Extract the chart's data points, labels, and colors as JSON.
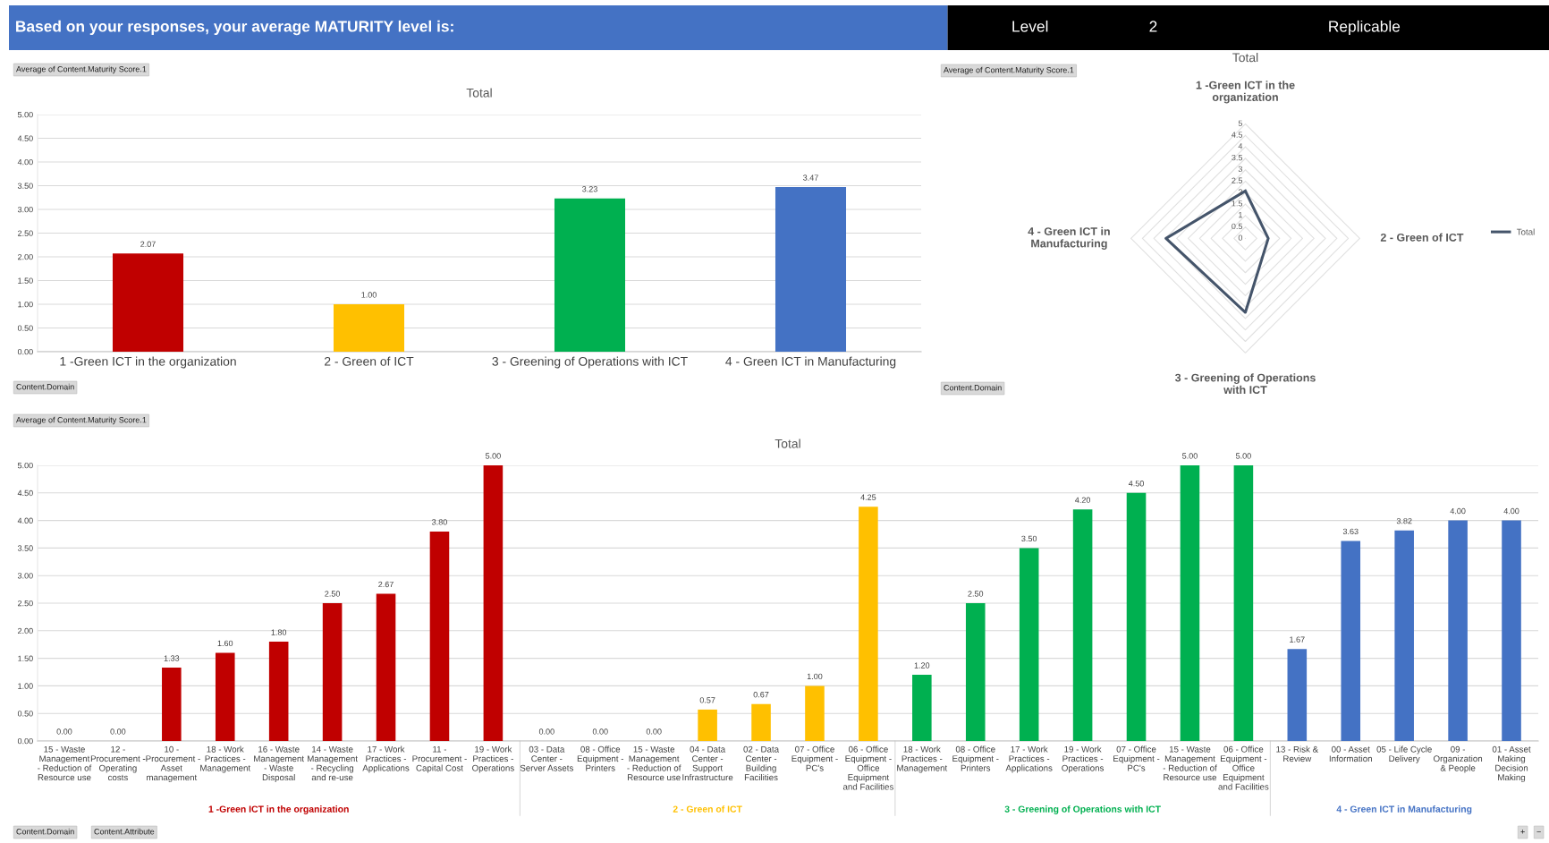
{
  "chart_data": [
    {
      "type": "other",
      "title": "Based on your responses, your average MATURITY level is:",
      "annotations": [
        "Level",
        "2",
        "Replicable"
      ],
      "colors": [
        "#4472c4",
        "#000000"
      ]
    },
    {
      "type": "bar",
      "title": "Total",
      "categories": [
        "1 -Green ICT in the organization",
        "2 - Green of ICT",
        "3 - Greening of Operations with ICT",
        "4 - Green ICT in Manufacturing"
      ],
      "values": [
        2.07,
        1.0,
        3.23,
        3.47
      ],
      "value_labels": [
        "2.07",
        "1.00",
        "3.23",
        "3.47"
      ],
      "colors": [
        "#c00000",
        "#ffc000",
        "#00b050",
        "#4472c4"
      ],
      "ylim": [
        0,
        5
      ],
      "yticks": [
        {
          "value": 0,
          "label": "0.00"
        },
        {
          "value": 0.5,
          "label": "0.50"
        },
        {
          "value": 1,
          "label": "1.00"
        },
        {
          "value": 1.5,
          "label": "1.50"
        },
        {
          "value": 2,
          "label": "2.00"
        },
        {
          "value": 2.5,
          "label": "2.50"
        },
        {
          "value": 3,
          "label": "3.00"
        },
        {
          "value": 3.5,
          "label": "3.50"
        },
        {
          "value": 4,
          "label": "4.00"
        },
        {
          "value": 4.5,
          "label": "4.50"
        },
        {
          "value": 5,
          "label": "5.00"
        }
      ],
      "grid": "y",
      "annotations": [
        "Average of Content.Maturity Score.1",
        "Content.Domain"
      ]
    },
    {
      "type": "radar",
      "title": "Total",
      "categories": [
        "1 -Green ICT in the\norganization",
        "2 - Green of ICT",
        "3 - Greening of Operations\nwith ICT",
        "4 - Green ICT in\nManufacturing"
      ],
      "series": [
        {
          "name": "Total",
          "color": "#44546a",
          "values": [
            2.07,
            1.0,
            3.23,
            3.47
          ]
        }
      ],
      "ylim": [
        0,
        5
      ],
      "yticks": [
        0,
        0.5,
        1,
        1.5,
        2,
        2.5,
        3,
        3.5,
        4,
        4.5,
        5
      ],
      "grid": true,
      "legend": "right",
      "marker": "none",
      "annotations": [
        "Average of Content.Maturity Score.1",
        "Content.Domain"
      ]
    },
    {
      "type": "bar",
      "title": "Total",
      "categories": [
        "15 - Waste\nManagement\n- Reduction of\nResource use",
        "12 -\nProcurement -\nOperating\ncosts",
        "10 -\n-Procurement -\nAsset\nmanagement",
        "18 - Work\nPractices -\nManagement",
        "16 - Waste\nManagement\n- Waste\nDisposal",
        "14 - Waste\nManagement\n- Recycling\nand re-use",
        "17 - Work\nPractices -\nApplications",
        "11 -\nProcurement -\nCapital Cost",
        "19 - Work\nPractices -\nOperations",
        "03 - Data\nCenter -\nServer Assets",
        "08 - Office\nEquipment -\nPrinters",
        "15 - Waste\nManagement\n- Reduction of\nResource use",
        "04 - Data\nCenter -\nSupport\nInfrastructure",
        "02 - Data\nCenter -\nBuilding\nFacilities",
        "07 - Office\nEquipment -\nPC's",
        "06 - Office\nEquipment -\nOffice\nEquipment\nand Facilities",
        "18 - Work\nPractices -\nManagement",
        "08 - Office\nEquipment -\nPrinters",
        "17 - Work\nPractices -\nApplications",
        "19 - Work\nPractices -\nOperations",
        "07 - Office\nEquipment -\nPC's",
        "15 - Waste\nManagement\n- Reduction of\nResource use",
        "06 - Office\nEquipment -\nOffice\nEquipment\nand Facilities",
        "13 - Risk &\nReview",
        "00 - Asset\nInformation",
        "05 - Life Cycle\nDelivery",
        "09 -\nOrganization\n& People",
        "01 - Asset\nMaking\nDecision\nMaking"
      ],
      "series": [
        {
          "name": "1 -Green ICT in the organization",
          "color": "#c00000",
          "values": [
            0.0,
            0.0,
            1.33,
            1.6,
            1.8,
            2.5,
            2.67,
            3.8,
            5.0,
            null,
            null,
            null,
            null,
            null,
            null,
            null,
            null,
            null,
            null,
            null,
            null,
            null,
            null,
            null,
            null,
            null,
            null,
            null
          ],
          "value_labels": [
            "0.00",
            "0.00",
            "1.33",
            "1.60",
            "1.80",
            "2.50",
            "2.67",
            "3.80",
            "5.00",
            null,
            null,
            null,
            null,
            null,
            null,
            null,
            null,
            null,
            null,
            null,
            null,
            null,
            null,
            null,
            null,
            null,
            null,
            null
          ]
        },
        {
          "name": "2 - Green of ICT",
          "color": "#ffc000",
          "values": [
            null,
            null,
            null,
            null,
            null,
            null,
            null,
            null,
            null,
            0.0,
            0.0,
            0.0,
            0.57,
            0.67,
            1.0,
            4.25,
            null,
            null,
            null,
            null,
            null,
            null,
            null,
            null,
            null,
            null,
            null,
            null
          ],
          "value_labels": [
            null,
            null,
            null,
            null,
            null,
            null,
            null,
            null,
            null,
            "0.00",
            "0.00",
            "0.00",
            "0.57",
            "0.67",
            "1.00",
            "4.25",
            null,
            null,
            null,
            null,
            null,
            null,
            null,
            null,
            null,
            null,
            null,
            null
          ]
        },
        {
          "name": "3 - Greening of Operations with ICT",
          "color": "#00b050",
          "values": [
            null,
            null,
            null,
            null,
            null,
            null,
            null,
            null,
            null,
            null,
            null,
            null,
            null,
            null,
            null,
            null,
            1.2,
            2.5,
            3.5,
            4.2,
            4.5,
            5.0,
            5.0,
            null,
            null,
            null,
            null,
            null
          ],
          "value_labels": [
            null,
            null,
            null,
            null,
            null,
            null,
            null,
            null,
            null,
            null,
            null,
            null,
            null,
            null,
            null,
            null,
            "1.20",
            "2.50",
            "3.50",
            "4.20",
            "4.50",
            "5.00",
            "5.00",
            null,
            null,
            null,
            null,
            null
          ]
        },
        {
          "name": "4 - Green ICT in Manufacturing",
          "color": "#4472c4",
          "values": [
            null,
            null,
            null,
            null,
            null,
            null,
            null,
            null,
            null,
            null,
            null,
            null,
            null,
            null,
            null,
            null,
            null,
            null,
            null,
            null,
            null,
            null,
            null,
            1.67,
            3.63,
            3.82,
            4.0,
            4.0
          ],
          "value_labels": [
            null,
            null,
            null,
            null,
            null,
            null,
            null,
            null,
            null,
            null,
            null,
            null,
            null,
            null,
            null,
            null,
            null,
            null,
            null,
            null,
            null,
            null,
            null,
            "1.67",
            "3.63",
            "3.82",
            "4.00",
            "4.00"
          ]
        }
      ],
      "ylim": [
        0,
        5
      ],
      "yticks": [
        {
          "value": 0,
          "label": "0.00"
        },
        {
          "value": 0.5,
          "label": "0.50"
        },
        {
          "value": 1,
          "label": "1.00"
        },
        {
          "value": 1.5,
          "label": "1.50"
        },
        {
          "value": 2,
          "label": "2.00"
        },
        {
          "value": 2.5,
          "label": "2.50"
        },
        {
          "value": 3,
          "label": "3.00"
        },
        {
          "value": 3.5,
          "label": "3.50"
        },
        {
          "value": 4,
          "label": "4.00"
        },
        {
          "value": 4.5,
          "label": "4.50"
        },
        {
          "value": 5,
          "label": "5.00"
        }
      ],
      "grid": "y",
      "annotations": [
        "Average of Content.Maturity Score.1",
        "Content.Domain",
        "Content.Attribute",
        "+",
        "−"
      ]
    }
  ]
}
